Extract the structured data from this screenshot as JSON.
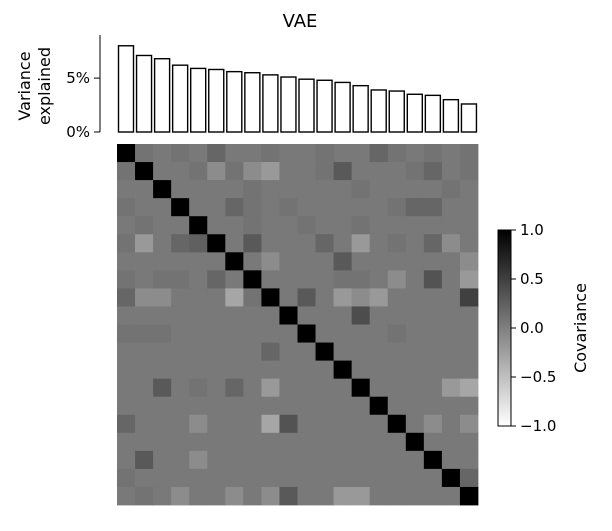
{
  "chart_data": [
    {
      "type": "bar",
      "title": "VAE",
      "ylabel": [
        "Variance",
        "explained"
      ],
      "ylim": [
        0,
        9
      ],
      "yticks": [
        {
          "value": 0,
          "label": "0%"
        },
        {
          "value": 5,
          "label": "5%"
        }
      ],
      "values": [
        8.0,
        7.1,
        6.8,
        6.2,
        5.9,
        5.8,
        5.6,
        5.5,
        5.3,
        5.1,
        4.9,
        4.8,
        4.6,
        4.3,
        3.9,
        3.8,
        3.5,
        3.4,
        3.0,
        2.6
      ],
      "bar_fill": "#ffffff",
      "bar_stroke": "#000000",
      "grid": false
    },
    {
      "type": "heatmap",
      "size": 20,
      "colormap": "greys",
      "vmin": -1.0,
      "vmax": 1.0,
      "colorbar": {
        "label": "Covariance",
        "ticks": [
          {
            "value": 1.0,
            "label": "1.0"
          },
          {
            "value": 0.5,
            "label": "0.5"
          },
          {
            "value": 0.0,
            "label": "0.0"
          },
          {
            "value": -0.5,
            "label": "−0.5"
          },
          {
            "value": -1.0,
            "label": "−1.0"
          }
        ]
      },
      "values": [
        [
          1,
          0.1,
          0.05,
          0.1,
          0.05,
          0.2,
          0.05,
          0.05,
          0.1,
          0.05,
          0.05,
          0.1,
          0.05,
          0.05,
          0.2,
          0.1,
          0.05,
          0.1,
          0.05,
          0.1
        ],
        [
          0.1,
          1,
          0.05,
          0.05,
          0.1,
          -0.1,
          0.1,
          -0.1,
          -0.2,
          0.05,
          0.05,
          0.1,
          0.3,
          0.05,
          0.05,
          0.05,
          0.1,
          0.2,
          0.05,
          0.1
        ],
        [
          0.05,
          0.05,
          1,
          0.05,
          0.05,
          0.05,
          0.05,
          0.1,
          0.05,
          0.05,
          0.05,
          0.05,
          0.05,
          0.1,
          0.05,
          0.05,
          0.05,
          0.05,
          0.1,
          0.05
        ],
        [
          0.1,
          0.05,
          0.05,
          1,
          0.05,
          0.05,
          0.2,
          0.1,
          0.05,
          0.1,
          0.05,
          0.05,
          0.05,
          0.05,
          0.05,
          0.1,
          0.2,
          0.2,
          0.05,
          0.05
        ],
        [
          0.05,
          0.1,
          0.05,
          0.05,
          1,
          0.05,
          0.05,
          0.1,
          0.05,
          0.05,
          0.1,
          0.05,
          0.05,
          0.1,
          0.05,
          0.05,
          0.05,
          0.05,
          0.05,
          0.05
        ],
        [
          0.1,
          -0.2,
          0.05,
          0.2,
          0.25,
          1,
          0.05,
          0.3,
          0.05,
          0.05,
          0.05,
          0.2,
          0.05,
          -0.2,
          0.05,
          0.1,
          0.05,
          0.2,
          -0.1,
          0.05
        ],
        [
          0.05,
          0.05,
          0.05,
          0.05,
          0.05,
          0.05,
          1,
          0.05,
          -0.1,
          0.05,
          0.05,
          0.05,
          0.3,
          0.05,
          0.05,
          0.05,
          0.05,
          0.05,
          0.05,
          -0.1
        ],
        [
          0.1,
          0.05,
          0.1,
          0.1,
          0.05,
          0.2,
          0.05,
          1,
          0.05,
          0.05,
          0.05,
          0.05,
          0.1,
          0.1,
          0.05,
          -0.1,
          0.05,
          0.35,
          0.05,
          -0.2
        ],
        [
          0.2,
          -0.1,
          -0.1,
          0.05,
          0.05,
          0.05,
          -0.3,
          0.1,
          1,
          0.05,
          0.3,
          0.05,
          -0.2,
          -0.1,
          -0.2,
          0.05,
          0.05,
          0.05,
          0.05,
          0.5
        ],
        [
          0.05,
          0.05,
          0.05,
          0.05,
          0.05,
          0.05,
          0.05,
          0.05,
          0.05,
          1,
          0.05,
          0.05,
          0.05,
          0.4,
          0.05,
          0.05,
          0.05,
          0.05,
          0.05,
          0.05
        ],
        [
          0.1,
          0.1,
          0.1,
          0.05,
          0.05,
          0.05,
          0.05,
          0.05,
          0.05,
          0.05,
          1,
          0.05,
          0.05,
          0.05,
          0.05,
          0.1,
          0.05,
          0.05,
          0.05,
          0.05
        ],
        [
          0.05,
          0.05,
          0.05,
          0.05,
          0.05,
          0.05,
          0.05,
          0.05,
          0.2,
          0.05,
          0.05,
          1,
          0.05,
          0.05,
          0.05,
          0.05,
          0.05,
          0.05,
          0.05,
          0.05
        ],
        [
          0.05,
          0.05,
          0.05,
          0.05,
          0.05,
          0.05,
          0.05,
          0.05,
          0.05,
          0.05,
          0.05,
          0.05,
          1,
          0.05,
          0.05,
          0.05,
          0.05,
          0.05,
          0.05,
          0.05
        ],
        [
          0.05,
          0.05,
          0.3,
          0.05,
          0.1,
          0.05,
          0.2,
          0.05,
          -0.2,
          0.05,
          0.05,
          0.05,
          0.05,
          1,
          0.05,
          0.05,
          0.05,
          0.05,
          -0.2,
          -0.3
        ],
        [
          0.05,
          0.05,
          0.05,
          0.05,
          0.05,
          0.05,
          0.05,
          0.05,
          0.05,
          0.05,
          0.05,
          0.05,
          0.05,
          0.05,
          1,
          0.05,
          0.05,
          0.05,
          0.05,
          0.05
        ],
        [
          0.2,
          0.05,
          0.05,
          0.05,
          -0.1,
          0.05,
          0.05,
          0.05,
          -0.3,
          0.35,
          0.05,
          0.05,
          0.05,
          0.05,
          0.05,
          1,
          0.05,
          -0.1,
          0.05,
          -0.1
        ],
        [
          0.05,
          0.05,
          0.05,
          0.05,
          0.05,
          0.05,
          0.05,
          0.05,
          0.05,
          0.05,
          0.05,
          0.05,
          0.05,
          0.05,
          0.05,
          0.05,
          1,
          0.05,
          0.05,
          0.05
        ],
        [
          0.05,
          0.3,
          0.05,
          0.05,
          -0.1,
          0.05,
          0.05,
          0.05,
          0.05,
          0.05,
          0.05,
          0.05,
          0.05,
          0.05,
          0.05,
          0.05,
          0.05,
          1,
          0.05,
          0.05
        ],
        [
          0.1,
          0.05,
          0.05,
          0.05,
          0.05,
          0.05,
          0.05,
          0.05,
          0.05,
          0.05,
          0.05,
          0.05,
          0.05,
          0.05,
          0.05,
          0.05,
          0.05,
          0.05,
          1,
          0.2
        ],
        [
          0.05,
          0.1,
          0.05,
          -0.1,
          0.05,
          0.05,
          -0.1,
          0.05,
          -0.1,
          0.3,
          0.05,
          0.05,
          -0.2,
          -0.2,
          0.05,
          0.05,
          0.05,
          0.05,
          0.05,
          1
        ]
      ]
    }
  ]
}
